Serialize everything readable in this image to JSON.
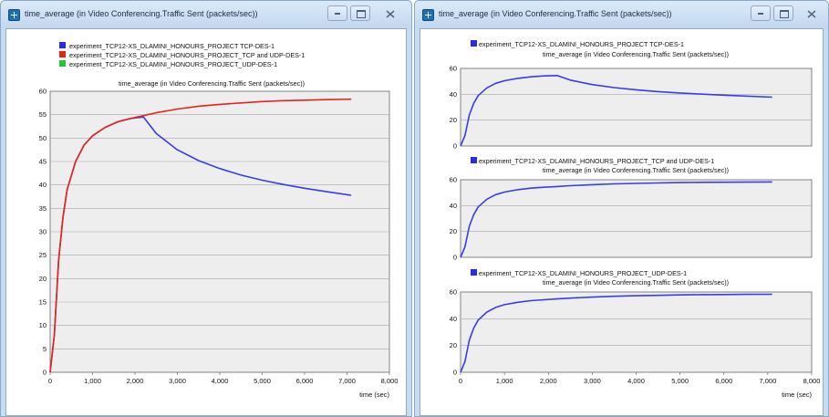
{
  "window_left": {
    "title": "time_average (in Video Conferencing.Traffic Sent (packets/sec))",
    "legend": [
      {
        "label": "experiment_TCP12-XS_DLAMINI_HONOURS_PROJECT TCP-DES-1",
        "color": "#2a2af2"
      },
      {
        "label": "experiment_TCP12-XS_DLAMINI_HONOURS_PROJECT_TCP and UDP-DES-1",
        "color": "#e8241a"
      },
      {
        "label": "experiment_TCP12-XS_DLAMINI_HONOURS_PROJECT_UDP-DES-1",
        "color": "#22c832"
      }
    ]
  },
  "window_right": {
    "title": "time_average (in Video Conferencing.Traffic Sent (packets/sec))"
  },
  "colors": {
    "plot_background": "#eeeeee",
    "window_frame": "#c4ddf3",
    "series_line": "#3a3af0"
  },
  "chart_data": [
    {
      "type": "line",
      "title": "time_average (in Video Conferencing.Traffic Sent (packets/sec))",
      "xlabel": "time (sec)",
      "ylabel": "",
      "xlim": [
        0,
        8000
      ],
      "ylim": [
        0,
        60
      ],
      "xticks": [
        "0",
        "1,000",
        "2,000",
        "3,000",
        "4,000",
        "5,000",
        "6,000",
        "7,000",
        "8,000"
      ],
      "yticks": [
        "0",
        "5",
        "10",
        "15",
        "20",
        "25",
        "30",
        "35",
        "40",
        "45",
        "50",
        "55",
        "60"
      ],
      "grid": true,
      "legend_position": "top",
      "series": [
        {
          "name": "experiment_TCP12-XS_DLAMINI_HONOURS_PROJECT TCP-DES-1",
          "color": "#3a3af0",
          "x": [
            0,
            100,
            200,
            300,
            400,
            600,
            800,
            1000,
            1300,
            1600,
            1900,
            2200,
            2500,
            3000,
            3500,
            4000,
            4500,
            5000,
            5500,
            6000,
            6500,
            7100
          ],
          "y": [
            0,
            8,
            24,
            33,
            39,
            45,
            48.5,
            50.5,
            52.3,
            53.5,
            54.2,
            54.5,
            51,
            47.5,
            45.2,
            43.5,
            42.1,
            41,
            40.1,
            39.3,
            38.6,
            37.8
          ]
        },
        {
          "name": "experiment_TCP12-XS_DLAMINI_HONOURS_PROJECT_TCP and UDP-DES-1",
          "color": "#e8241a",
          "x": [
            0,
            100,
            200,
            300,
            400,
            600,
            800,
            1000,
            1300,
            1600,
            1900,
            2200,
            2500,
            3000,
            3500,
            4000,
            4500,
            5000,
            5500,
            6000,
            6500,
            7100
          ],
          "y": [
            0,
            8,
            24,
            33,
            39,
            45,
            48.5,
            50.5,
            52.3,
            53.5,
            54.2,
            54.8,
            55.4,
            56.2,
            56.8,
            57.2,
            57.5,
            57.8,
            58,
            58.1,
            58.2,
            58.3
          ]
        }
      ]
    },
    {
      "type": "line",
      "legend": "experiment_TCP12-XS_DLAMINI_HONOURS_PROJECT TCP-DES-1",
      "title": "time_average (in Video Conferencing.Traffic Sent (packets/sec))",
      "xlim": [
        0,
        8000
      ],
      "ylim": [
        0,
        60
      ],
      "yticks": [
        "0",
        "20",
        "40",
        "60"
      ],
      "grid": true,
      "series": [
        {
          "name": "experiment_TCP12-XS_DLAMINI_HONOURS_PROJECT TCP-DES-1",
          "color": "#3a3af0",
          "x": [
            0,
            100,
            200,
            300,
            400,
            600,
            800,
            1000,
            1300,
            1600,
            1900,
            2200,
            2500,
            3000,
            3500,
            4000,
            4500,
            5000,
            5500,
            6000,
            6500,
            7100
          ],
          "y": [
            0,
            8,
            24,
            33,
            39,
            45,
            48.5,
            50.5,
            52.3,
            53.5,
            54.2,
            54.5,
            51,
            47.5,
            45.2,
            43.5,
            42.1,
            41,
            40.1,
            39.3,
            38.6,
            37.8
          ]
        }
      ]
    },
    {
      "type": "line",
      "legend": "experiment_TCP12-XS_DLAMINI_HONOURS_PROJECT_TCP and UDP-DES-1",
      "title": "time_average (in Video Conferencing.Traffic Sent (packets/sec))",
      "xlim": [
        0,
        8000
      ],
      "ylim": [
        0,
        60
      ],
      "yticks": [
        "0",
        "20",
        "40",
        "60"
      ],
      "grid": true,
      "series": [
        {
          "name": "experiment_TCP12-XS_DLAMINI_HONOURS_PROJECT_TCP and UDP-DES-1",
          "color": "#3a3af0",
          "x": [
            0,
            100,
            200,
            300,
            400,
            600,
            800,
            1000,
            1300,
            1600,
            1900,
            2200,
            2500,
            3000,
            3500,
            4000,
            4500,
            5000,
            5500,
            6000,
            6500,
            7100
          ],
          "y": [
            0,
            8,
            24,
            33,
            39,
            45,
            48.5,
            50.5,
            52.3,
            53.5,
            54.2,
            54.8,
            55.4,
            56.2,
            56.8,
            57.2,
            57.5,
            57.8,
            58,
            58.1,
            58.2,
            58.3
          ]
        }
      ]
    },
    {
      "type": "line",
      "legend": "experiment_TCP12-XS_DLAMINI_HONOURS_PROJECT_UDP-DES-1",
      "title": "time_average (in Video Conferencing.Traffic Sent (packets/sec))",
      "xlabel": "time (sec)",
      "xlim": [
        0,
        8000
      ],
      "ylim": [
        0,
        60
      ],
      "xticks": [
        "0",
        "1,000",
        "2,000",
        "3,000",
        "4,000",
        "5,000",
        "6,000",
        "7,000",
        "8,000"
      ],
      "yticks": [
        "0",
        "20",
        "40",
        "60"
      ],
      "grid": true,
      "series": [
        {
          "name": "experiment_TCP12-XS_DLAMINI_HONOURS_PROJECT_UDP-DES-1",
          "color": "#3a3af0",
          "x": [
            0,
            100,
            200,
            300,
            400,
            600,
            800,
            1000,
            1300,
            1600,
            1900,
            2200,
            2500,
            3000,
            3500,
            4000,
            4500,
            5000,
            5500,
            6000,
            6500,
            7100
          ],
          "y": [
            0,
            8,
            24,
            33,
            39,
            45,
            48.5,
            50.5,
            52.3,
            53.5,
            54.2,
            54.8,
            55.4,
            56.2,
            56.8,
            57.2,
            57.5,
            57.8,
            58,
            58.1,
            58.2,
            58.3
          ]
        }
      ]
    }
  ]
}
